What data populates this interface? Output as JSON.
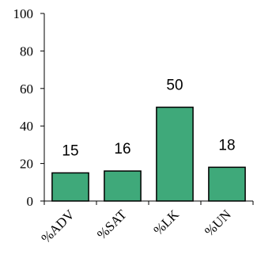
{
  "chart_data": {
    "type": "bar",
    "categories": [
      "%ADV",
      "%SAT",
      "%LK",
      "%UN"
    ],
    "values": [
      15,
      16,
      50,
      18
    ],
    "data_labels": [
      "15",
      "16",
      "50",
      "18"
    ],
    "title": "",
    "xlabel": "",
    "ylabel": "",
    "ylim": [
      0,
      100
    ],
    "yticks": [
      0,
      20,
      40,
      60,
      80,
      100
    ],
    "ytick_labels": [
      "0",
      "20",
      "40",
      "60",
      "80",
      "100"
    ],
    "grid": false,
    "legend": "none",
    "colors": {
      "bar_fill": "#3fa97a",
      "bar_stroke": "#000000",
      "axis": "#000000"
    }
  }
}
